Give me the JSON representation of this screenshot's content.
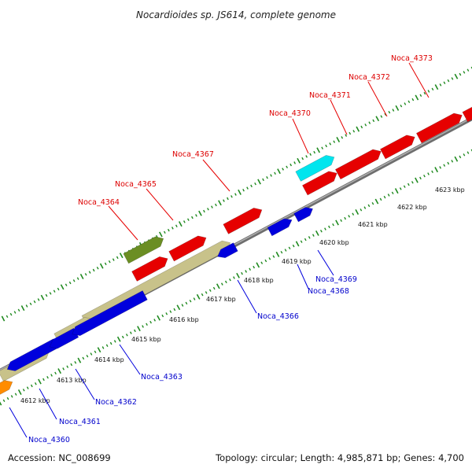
{
  "header": {
    "title": "Nocardioides sp. JS614, complete genome"
  },
  "footer": {
    "accession": "Accession: NC_008699",
    "summary": "Topology: circular; Length: 4,985,871 bp; Genes: 4,700"
  },
  "colors": {
    "backbone": "#8c8c8c",
    "tick": "#1f8a1f",
    "forward": "#e60000",
    "reverse": "#0000dd",
    "cyan": "#00e5ee",
    "olive": "#6b8e23",
    "khaki": "#c8c28a",
    "orange": "#ff8c00"
  },
  "axis": {
    "tick_labels": [
      "4612 kbp",
      "4613 kbp",
      "4614 kbp",
      "4615 kbp",
      "4616 kbp",
      "4617 kbp",
      "4618 kbp",
      "4619 kbp",
      "4620 kbp",
      "4621 kbp",
      "4622 kbp",
      "4623 kbp"
    ]
  },
  "labels": {
    "top": [
      "Noca_4364",
      "Noca_4365",
      "Noca_4367",
      "Noca_4370",
      "Noca_4371",
      "Noca_4372",
      "Noca_4373"
    ],
    "bottom": [
      "Noca_4360",
      "Noca_4361",
      "Noca_4362",
      "Noca_4363",
      "Noca_4366",
      "Noca_4368",
      "Noca_4369"
    ]
  }
}
